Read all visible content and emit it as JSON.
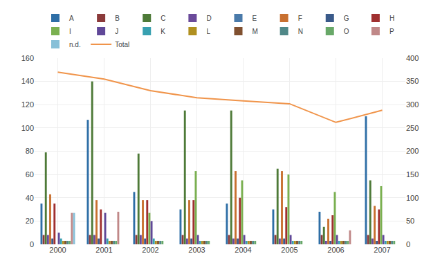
{
  "chart_data": {
    "type": "bar",
    "categories": [
      2000,
      2001,
      2002,
      2003,
      2004,
      2005,
      2006,
      2007
    ],
    "series": [
      {
        "name": "A",
        "color": "#2e6ea6",
        "values": [
          35,
          107,
          45,
          30,
          35,
          30,
          28,
          110
        ]
      },
      {
        "name": "B",
        "color": "#8b3a3a",
        "values": [
          8,
          8,
          8,
          8,
          8,
          8,
          8,
          8
        ]
      },
      {
        "name": "C",
        "color": "#4e7a38",
        "values": [
          79,
          140,
          78,
          115,
          115,
          65,
          15,
          55
        ]
      },
      {
        "name": "D",
        "color": "#6a4a9a",
        "values": [
          8,
          8,
          8,
          5,
          5,
          5,
          3,
          5
        ]
      },
      {
        "name": "E",
        "color": "#4a7aaa",
        "values": [
          0,
          0,
          0,
          0,
          0,
          0,
          0,
          0
        ]
      },
      {
        "name": "F",
        "color": "#c87030",
        "values": [
          43,
          38,
          38,
          38,
          63,
          63,
          22,
          33
        ]
      },
      {
        "name": "G",
        "color": "#3a5a8a",
        "values": [
          5,
          5,
          5,
          5,
          5,
          5,
          3,
          3
        ]
      },
      {
        "name": "H",
        "color": "#a03030",
        "values": [
          35,
          30,
          38,
          38,
          40,
          32,
          25,
          30
        ]
      },
      {
        "name": "I",
        "color": "#7ab050",
        "values": [
          0,
          0,
          27,
          63,
          55,
          60,
          45,
          50
        ]
      },
      {
        "name": "J",
        "color": "#604898",
        "values": [
          10,
          27,
          20,
          8,
          8,
          8,
          8,
          8
        ]
      },
      {
        "name": "K",
        "color": "#38a0b0",
        "values": [
          5,
          5,
          5,
          3,
          3,
          3,
          3,
          3
        ]
      },
      {
        "name": "L",
        "color": "#b09020",
        "values": [
          3,
          3,
          3,
          3,
          3,
          3,
          3,
          3
        ]
      },
      {
        "name": "M",
        "color": "#805030",
        "values": [
          3,
          3,
          3,
          3,
          3,
          3,
          3,
          3
        ]
      },
      {
        "name": "N",
        "color": "#508888",
        "values": [
          3,
          3,
          3,
          3,
          3,
          3,
          3,
          3
        ]
      },
      {
        "name": "O",
        "color": "#68a868",
        "values": [
          3,
          3,
          3,
          3,
          3,
          3,
          3,
          3
        ]
      },
      {
        "name": "P",
        "color": "#c08888",
        "values": [
          27,
          28,
          0,
          0,
          0,
          0,
          12,
          0
        ]
      },
      {
        "name": "n.d.",
        "color": "#88c0d8",
        "values": [
          27,
          0,
          0,
          0,
          0,
          0,
          0,
          0
        ]
      },
      {
        "name": "Total",
        "type": "line",
        "axis": "y2",
        "color": "#f0944a",
        "values": [
          370,
          355,
          330,
          315,
          308,
          302,
          262,
          288
        ]
      }
    ],
    "ylim": [
      0,
      160
    ],
    "yticks": [
      0,
      20,
      40,
      60,
      80,
      100,
      120,
      140,
      160
    ],
    "y2lim": [
      0,
      400
    ],
    "y2ticks": [
      0,
      50,
      100,
      150,
      200,
      250,
      300,
      350,
      400
    ],
    "grid": true,
    "legend": "top"
  }
}
